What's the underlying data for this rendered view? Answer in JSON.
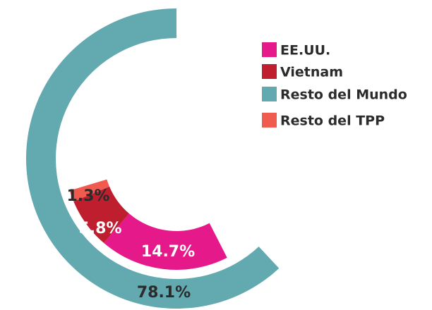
{
  "chart_data": {
    "type": "donut",
    "categories": [
      "EE.UU.",
      "Vietnam",
      "Resto del Mundo",
      "Resto del TPP"
    ],
    "values": [
      14.7,
      5.8,
      78.1,
      1.3
    ],
    "value_labels": [
      "14.7%",
      "5.8%",
      "78.1%",
      "1.3%"
    ],
    "colors": [
      "#e6198a",
      "#be1e2d",
      "#62a9b0",
      "#f05a4f"
    ],
    "legend": "top-right"
  }
}
